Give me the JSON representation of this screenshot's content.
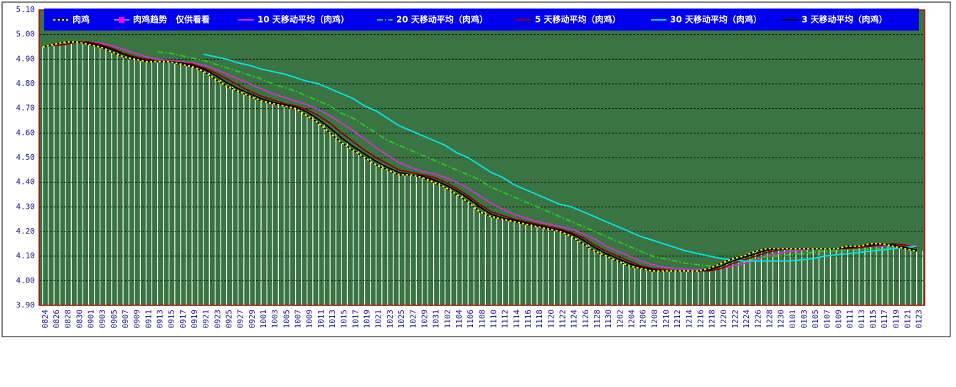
{
  "chart_data": {
    "type": "line",
    "categories": [
      "0824",
      "0826",
      "0828",
      "0830",
      "0901",
      "0903",
      "0905",
      "0907",
      "0909",
      "0911",
      "0913",
      "0915",
      "0917",
      "0919",
      "0921",
      "0923",
      "0925",
      "0927",
      "0929",
      "1001",
      "1003",
      "1005",
      "1007",
      "1009",
      "1011",
      "1013",
      "1015",
      "1017",
      "1019",
      "1021",
      "1023",
      "1025",
      "1027",
      "1029",
      "1031",
      "1102",
      "1104",
      "1106",
      "1108",
      "1110",
      "1112",
      "1114",
      "1116",
      "1118",
      "1120",
      "1122",
      "1124",
      "1126",
      "1128",
      "1130",
      "1202",
      "1204",
      "1206",
      "1208",
      "1210",
      "1212",
      "1214",
      "1216",
      "1218",
      "1220",
      "1222",
      "1224",
      "1226",
      "1228",
      "1230",
      "0101",
      "0103",
      "0105",
      "0107",
      "0109",
      "0111",
      "0113",
      "0115",
      "0117",
      "0119",
      "0121",
      "0123"
    ],
    "series": [
      {
        "name": "肉鸡",
        "color": "#000000",
        "dash_color": "#ffff00",
        "style": "line",
        "values": [
          4.95,
          4.96,
          4.97,
          4.97,
          4.96,
          4.95,
          4.93,
          4.91,
          4.9,
          4.89,
          4.89,
          4.89,
          4.88,
          4.87,
          4.85,
          4.82,
          4.79,
          4.77,
          4.75,
          4.73,
          4.72,
          4.71,
          4.7,
          4.67,
          4.64,
          4.6,
          4.56,
          4.53,
          4.5,
          4.47,
          4.45,
          4.43,
          4.43,
          4.42,
          4.4,
          4.38,
          4.35,
          4.32,
          4.28,
          4.26,
          4.25,
          4.24,
          4.23,
          4.22,
          4.21,
          4.2,
          4.18,
          4.15,
          4.12,
          4.1,
          4.08,
          4.06,
          4.05,
          4.04,
          4.04,
          4.04,
          4.04,
          4.04,
          4.05,
          4.07,
          4.09,
          4.1,
          4.12,
          4.13,
          4.13,
          4.13,
          4.13,
          4.13,
          4.13,
          4.13,
          4.14,
          4.14,
          4.15,
          4.15,
          4.14,
          4.13,
          4.12
        ]
      },
      {
        "name": "肉鸡趋势　仅供看看",
        "color": "#ffffff",
        "marker_color": "#ff00ff",
        "style": "bars",
        "values": [
          4.95,
          4.96,
          4.97,
          4.97,
          4.96,
          4.95,
          4.93,
          4.91,
          4.9,
          4.89,
          4.89,
          4.89,
          4.88,
          4.87,
          4.85,
          4.82,
          4.79,
          4.77,
          4.75,
          4.73,
          4.72,
          4.71,
          4.7,
          4.67,
          4.64,
          4.6,
          4.56,
          4.53,
          4.5,
          4.47,
          4.45,
          4.43,
          4.43,
          4.42,
          4.4,
          4.38,
          4.35,
          4.32,
          4.28,
          4.26,
          4.25,
          4.24,
          4.23,
          4.22,
          4.21,
          4.2,
          4.18,
          4.15,
          4.12,
          4.1,
          4.08,
          4.06,
          4.05,
          4.04,
          4.04,
          4.04,
          4.04,
          4.04,
          4.05,
          4.07,
          4.09,
          4.1,
          4.12,
          4.13,
          4.13,
          4.13,
          4.13,
          4.13,
          4.13,
          4.13,
          4.14,
          4.14,
          4.15,
          4.15,
          4.14,
          4.13,
          4.12
        ]
      },
      {
        "name": "10 天移动平均（肉鸡）",
        "color": "#cc33cc",
        "style": "line",
        "values": [
          null,
          null,
          null,
          4.97,
          4.97,
          4.965,
          4.955,
          4.94,
          4.925,
          4.91,
          4.9,
          4.895,
          4.89,
          4.885,
          4.875,
          4.86,
          4.84,
          4.82,
          4.8,
          4.78,
          4.76,
          4.745,
          4.73,
          4.715,
          4.695,
          4.67,
          4.64,
          4.61,
          4.575,
          4.54,
          4.51,
          4.48,
          4.46,
          4.445,
          4.435,
          4.42,
          4.4,
          4.375,
          4.345,
          4.315,
          4.29,
          4.27,
          4.255,
          4.24,
          4.23,
          4.22,
          4.21,
          4.19,
          4.17,
          4.14,
          4.12,
          4.1,
          4.08,
          4.065,
          4.055,
          4.05,
          4.045,
          4.045,
          4.045,
          4.05,
          4.06,
          4.07,
          4.085,
          4.1,
          4.11,
          4.12,
          4.125,
          4.13,
          4.13,
          4.13,
          4.135,
          4.135,
          4.14,
          4.14,
          4.145,
          4.145,
          4.14
        ]
      },
      {
        "name": "20 天移动平均（肉鸡）",
        "color": "#22cc22",
        "dash": "8 3 2 3",
        "style": "line",
        "values": [
          null,
          null,
          null,
          null,
          null,
          null,
          null,
          null,
          null,
          null,
          4.93,
          4.925,
          4.915,
          4.905,
          4.895,
          4.88,
          4.865,
          4.85,
          4.835,
          4.82,
          4.8,
          4.785,
          4.77,
          4.75,
          4.73,
          4.71,
          4.68,
          4.66,
          4.63,
          4.6,
          4.57,
          4.55,
          4.53,
          4.51,
          4.49,
          4.47,
          4.45,
          4.43,
          4.41,
          4.38,
          4.36,
          4.34,
          4.32,
          4.3,
          4.28,
          4.26,
          4.24,
          4.22,
          4.2,
          4.18,
          4.16,
          4.14,
          4.12,
          4.1,
          4.09,
          4.08,
          4.07,
          4.065,
          4.06,
          4.06,
          4.07,
          4.08,
          4.09,
          4.1,
          4.1,
          4.105,
          4.11,
          4.115,
          4.12,
          4.12,
          4.125,
          4.125,
          4.13,
          4.13,
          4.135,
          4.135,
          4.135
        ]
      },
      {
        "name": "5 天移动平均（肉鸡）",
        "color": "#8b0000",
        "style": "line",
        "values": [
          null,
          4.955,
          4.96,
          4.97,
          4.97,
          4.96,
          4.945,
          4.925,
          4.91,
          4.9,
          4.89,
          4.89,
          4.885,
          4.88,
          4.865,
          4.845,
          4.82,
          4.795,
          4.77,
          4.75,
          4.735,
          4.72,
          4.71,
          4.695,
          4.67,
          4.64,
          4.6,
          4.565,
          4.53,
          4.5,
          4.475,
          4.45,
          4.44,
          4.43,
          4.42,
          4.4,
          4.375,
          4.345,
          4.31,
          4.28,
          4.265,
          4.25,
          4.24,
          4.23,
          4.22,
          4.21,
          4.195,
          4.175,
          4.145,
          4.12,
          4.1,
          4.08,
          4.06,
          4.05,
          4.045,
          4.04,
          4.04,
          4.04,
          4.04,
          4.05,
          4.07,
          4.085,
          4.1,
          4.115,
          4.125,
          4.13,
          4.13,
          4.13,
          4.13,
          4.13,
          4.13,
          4.135,
          4.14,
          4.145,
          4.15,
          4.145,
          4.135
        ]
      },
      {
        "name": "30 天移动平均（肉鸡）",
        "color": "#00e5e5",
        "style": "line",
        "values": [
          null,
          null,
          null,
          null,
          null,
          null,
          null,
          null,
          null,
          null,
          null,
          null,
          null,
          null,
          4.92,
          4.91,
          4.9,
          4.885,
          4.875,
          4.86,
          4.85,
          4.84,
          4.825,
          4.81,
          4.8,
          4.78,
          4.76,
          4.74,
          4.71,
          4.69,
          4.66,
          4.63,
          4.61,
          4.59,
          4.57,
          4.55,
          4.52,
          4.5,
          4.47,
          4.44,
          4.42,
          4.39,
          4.37,
          4.35,
          4.33,
          4.31,
          4.3,
          4.28,
          4.26,
          4.24,
          4.22,
          4.2,
          4.18,
          4.165,
          4.15,
          4.135,
          4.12,
          4.11,
          4.1,
          4.09,
          4.085,
          4.08,
          4.08,
          4.08,
          4.08,
          4.08,
          4.085,
          4.09,
          4.1,
          4.105,
          4.11,
          4.115,
          4.12,
          4.125,
          4.13,
          4.135,
          4.14
        ]
      },
      {
        "name": "3 天移动平均（肉鸡）",
        "color": "#000000",
        "style": "line",
        "values": [
          null,
          4.96,
          4.97,
          4.97,
          4.965,
          4.955,
          4.94,
          4.92,
          4.905,
          4.895,
          4.89,
          4.89,
          4.885,
          4.875,
          4.86,
          4.835,
          4.805,
          4.78,
          4.76,
          4.74,
          4.725,
          4.715,
          4.705,
          4.685,
          4.655,
          4.62,
          4.58,
          4.545,
          4.515,
          4.485,
          4.46,
          4.44,
          4.43,
          4.425,
          4.41,
          4.39,
          4.365,
          4.335,
          4.3,
          4.27,
          4.255,
          4.245,
          4.235,
          4.225,
          4.215,
          4.205,
          4.19,
          4.165,
          4.135,
          4.11,
          4.09,
          4.07,
          4.055,
          4.045,
          4.04,
          4.04,
          4.04,
          4.04,
          4.045,
          4.06,
          4.08,
          4.095,
          4.11,
          4.125,
          4.13,
          4.13,
          4.13,
          4.13,
          4.13,
          4.13,
          4.135,
          4.14,
          4.145,
          4.15,
          4.145,
          4.135,
          4.125
        ]
      }
    ],
    "ylim": [
      3.9,
      5.1
    ],
    "yticks": [
      {
        "value": 3.9,
        "label": "3.90"
      },
      {
        "value": 4.0,
        "label": "4.00"
      },
      {
        "value": 4.1,
        "label": "4.10"
      },
      {
        "value": 4.2,
        "label": "4.20"
      },
      {
        "value": 4.3,
        "label": "4.30"
      },
      {
        "value": 4.4,
        "label": "4.40"
      },
      {
        "value": 4.5,
        "label": "4.50"
      },
      {
        "value": 4.6,
        "label": "4.60"
      },
      {
        "value": 4.7,
        "label": "4.70"
      },
      {
        "value": 4.8,
        "label": "4.80"
      },
      {
        "value": 4.9,
        "label": "4.90"
      },
      {
        "value": 5.0,
        "label": "5.00"
      },
      {
        "value": 5.1,
        "label": "5.10"
      }
    ],
    "grid": true,
    "legend": "top",
    "background": "#3b7443"
  }
}
